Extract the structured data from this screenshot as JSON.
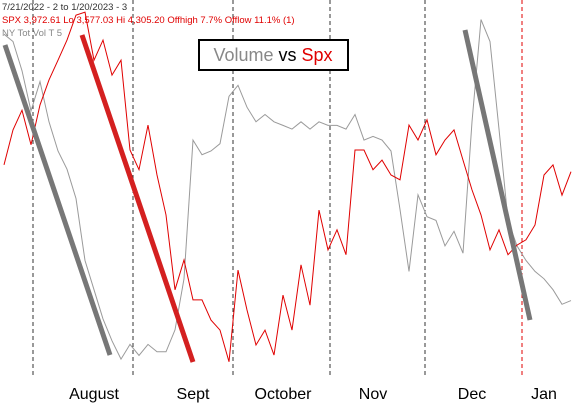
{
  "chart_data": {
    "type": "line",
    "header_lines": [
      "7/21/2022 - 2 to 1/20/2023 - 3",
      "SPX 3,972.61 Lo 3,577.03 Hi 4,305.20 Offhigh 7.7% Offlow 11.1% (1)",
      "NY Tot Vol T 5"
    ],
    "title_separator": "vs",
    "categories": [
      null,
      null,
      null,
      null,
      null,
      null,
      null,
      null,
      null,
      null,
      "August",
      null,
      null,
      null,
      null,
      null,
      null,
      null,
      null,
      null,
      null,
      "Sept",
      null,
      null,
      null,
      null,
      null,
      null,
      null,
      null,
      null,
      "October",
      null,
      null,
      null,
      null,
      null,
      null,
      null,
      null,
      null,
      "Nov",
      null,
      null,
      null,
      null,
      null,
      null,
      null,
      null,
      null,
      null,
      "Dec",
      null,
      null,
      null,
      null,
      null,
      null,
      null,
      "Jan",
      null,
      null,
      null
    ],
    "ylim": [
      3560,
      4320
    ],
    "y2lim": [
      0,
      100
    ],
    "series": [
      {
        "name": "Spx",
        "color": "#e00000",
        "values": [
          3987,
          4060,
          4101,
          4029,
          4112,
          4164,
          4205,
          4247,
          4299,
          4305,
          4205,
          4247,
          4174,
          4205,
          4018,
          3977,
          4070,
          3966,
          3883,
          3727,
          3789,
          3706,
          3706,
          3664,
          3643,
          3577,
          3768,
          3685,
          3612,
          3643,
          3591,
          3716,
          3643,
          3779,
          3695,
          3893,
          3810,
          3852,
          3800,
          4018,
          4018,
          3977,
          3997,
          3966,
          3956,
          4070,
          4039,
          4081,
          4008,
          4039,
          4060,
          3997,
          3935,
          3883,
          3810,
          3852,
          3800,
          3820,
          3831,
          3862,
          3966,
          3987,
          3924,
          3973
        ]
      },
      {
        "name": "Volume",
        "color": "#9a9a9a",
        "axis": "y2",
        "values": [
          92,
          90,
          82,
          71,
          79,
          68,
          60,
          55,
          47,
          30,
          22,
          14,
          8,
          3,
          7,
          4,
          7,
          5,
          5,
          11,
          25,
          63,
          59,
          60,
          62,
          75,
          78,
          72,
          68,
          70,
          68,
          67,
          66,
          68,
          66,
          68,
          67,
          67,
          66,
          70,
          63,
          64,
          63,
          60,
          44,
          27,
          48,
          42,
          41,
          34,
          38,
          32,
          68,
          96,
          90,
          66,
          41,
          34,
          30,
          27,
          25,
          22,
          18,
          19
        ]
      }
    ]
  }
}
